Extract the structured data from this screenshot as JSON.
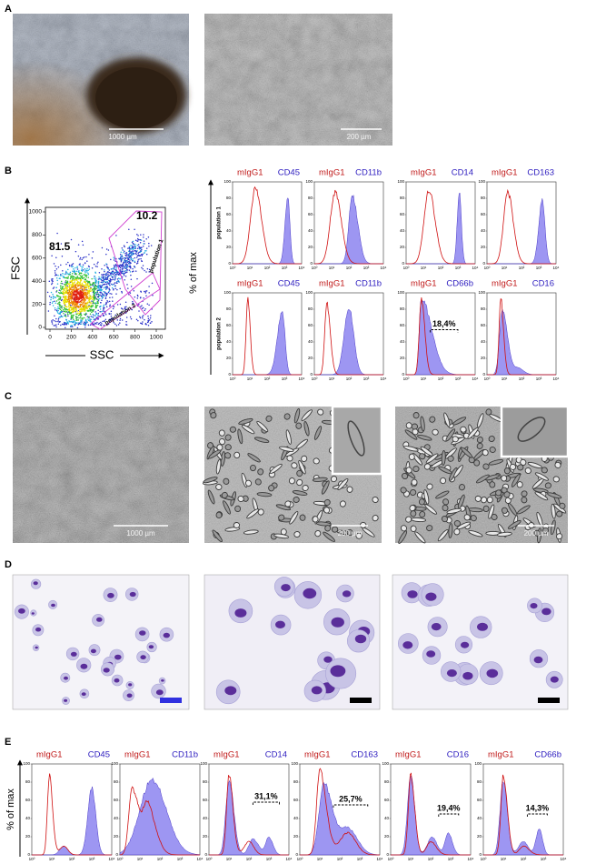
{
  "panel_letters": [
    "A",
    "B",
    "C",
    "D",
    "E"
  ],
  "panel_a": {
    "scale_bars": [
      "1000 µm",
      "200 µm"
    ]
  },
  "panel_b": {
    "scatter": {
      "y_label": "FSC",
      "x_label": "SSC",
      "xticks": [
        0,
        200,
        400,
        600,
        800,
        1000
      ],
      "yticks": [
        0,
        200,
        400,
        600,
        800,
        1000
      ],
      "gate_values": [
        "81.5",
        "10.2"
      ],
      "gate_names": [
        "population 1",
        "population 2"
      ]
    },
    "histograms": {
      "y_label": "% of max",
      "xticks": [
        "10⁰",
        "10¹",
        "10²",
        "10³",
        "10⁴"
      ],
      "yticks": [
        0,
        20,
        40,
        60,
        80,
        100
      ],
      "rows": [
        {
          "name": "population 1",
          "panels": [
            {
              "control": "mIgG1",
              "marker": "CD45"
            },
            {
              "control": "mIgG1",
              "marker": "CD11b"
            },
            {
              "control": "mIgG1",
              "marker": "CD14"
            },
            {
              "control": "mIgG1",
              "marker": "CD163"
            }
          ]
        },
        {
          "name": "population 2",
          "panels": [
            {
              "control": "mIgG1",
              "marker": "CD45"
            },
            {
              "control": "mIgG1",
              "marker": "CD11b"
            },
            {
              "control": "mIgG1",
              "marker": "CD66b",
              "gate": "18,4%"
            },
            {
              "control": "mIgG1",
              "marker": "CD16"
            }
          ]
        }
      ]
    }
  },
  "panel_c": {
    "scale_bars": [
      "1000 µm",
      "200 µm",
      "200 µm"
    ]
  },
  "panel_e": {
    "y_label": "% of max",
    "xticks": [
      "10⁰",
      "10¹",
      "10²",
      "10³",
      "10⁴"
    ],
    "yticks": [
      0,
      20,
      40,
      60,
      80,
      100
    ],
    "panels": [
      {
        "control": "mIgG1",
        "marker": "CD45"
      },
      {
        "control": "mIgG1",
        "marker": "CD11b"
      },
      {
        "control": "mIgG1",
        "marker": "CD14",
        "gate": "31,1%"
      },
      {
        "control": "mIgG1",
        "marker": "CD163",
        "gate": "25,7%"
      },
      {
        "control": "mIgG1",
        "marker": "CD16",
        "gate": "19,4%"
      },
      {
        "control": "mIgG1",
        "marker": "CD66b",
        "gate": "14,3%"
      }
    ]
  }
}
